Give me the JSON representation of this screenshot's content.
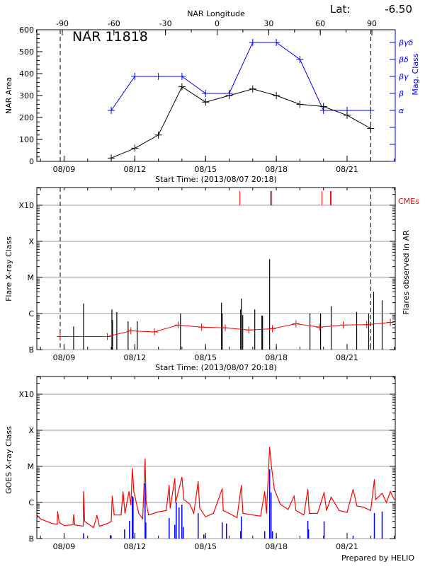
{
  "colors": {
    "area": "#000000",
    "mag": "#0000ff",
    "flare_avg": "#ff0000",
    "cme": "#ff0000",
    "goes": "#ff0000",
    "goes_flares": "#0000ff",
    "grid": "#999999"
  },
  "header": {
    "lat_label": "Lat:",
    "lat_value": "-6.50",
    "top_axis_label": "NAR Longitude"
  },
  "footer": {
    "credit": "Prepared by HELIO"
  },
  "chart_data": [
    {
      "type": "line",
      "title": "NAR 11818",
      "xlabel": "Start Time: (2013/08/07 20:18)",
      "ylabel": "NAR Area",
      "y2label": "Mag. Class",
      "x2label": "NAR Longitude",
      "xlim": [
        "2013-08-07T20:18",
        "2013-08-23T01:00"
      ],
      "ylim": [
        0,
        600
      ],
      "yticks": [
        0,
        100,
        200,
        300,
        400,
        500,
        600
      ],
      "xticks": [
        {
          "t": "2013-08-09T00:00",
          "label": "08/09"
        },
        {
          "t": "2013-08-12T00:00",
          "label": "08/12"
        },
        {
          "t": "2013-08-15T00:00",
          "label": "08/15"
        },
        {
          "t": "2013-08-18T00:00",
          "label": "08/18"
        },
        {
          "t": "2013-08-21T00:00",
          "label": "08/21"
        }
      ],
      "x2ticks": [
        -90,
        -60,
        -30,
        0,
        30,
        60,
        90
      ],
      "y2ticks": [
        {
          "v": 3,
          "label": "α"
        },
        {
          "v": 4,
          "label": "β"
        },
        {
          "v": 5,
          "label": "βγ"
        },
        {
          "v": 6,
          "label": "βδ"
        },
        {
          "v": 7,
          "label": "βγδ"
        }
      ],
      "dashed_lines": [
        "2013-08-08T20:04",
        "2013-08-22T00:09"
      ],
      "series": [
        {
          "key": "area",
          "x": [
            "2013-08-11T00:00",
            "2013-08-12T00:00",
            "2013-08-13T00:00",
            "2013-08-14T00:00",
            "2013-08-15T00:00",
            "2013-08-16T00:00",
            "2013-08-17T00:00",
            "2013-08-18T00:00",
            "2013-08-19T00:00",
            "2013-08-20T00:00",
            "2013-08-21T00:00",
            "2013-08-22T00:00"
          ],
          "values": [
            15,
            60,
            120,
            340,
            270,
            300,
            330,
            300,
            260,
            250,
            210,
            150
          ]
        },
        {
          "key": "mag",
          "x": [
            "2013-08-11T00:00",
            "2013-08-12T00:00",
            "2013-08-13T00:00",
            "2013-08-14T00:00",
            "2013-08-15T00:00",
            "2013-08-16T00:00",
            "2013-08-17T00:00",
            "2013-08-18T00:00",
            "2013-08-19T00:00",
            "2013-08-20T00:00",
            "2013-08-21T00:00",
            "2013-08-22T00:00"
          ],
          "values": [
            "α",
            "βγ",
            "βγ",
            "βγ",
            "β",
            "β",
            "βγδ",
            "βγδ",
            "βδ",
            "α",
            "α",
            "α"
          ]
        }
      ]
    },
    {
      "type": "bar",
      "xlabel": "Start Time: (2013/08/07 20:18)",
      "ylabel": "Flare X-ray Class",
      "y2label": "Flares observed in AR",
      "cme_label": "CMEs",
      "scale": "log",
      "ylim": [
        1e-07,
        0.003
      ],
      "yticks": [
        {
          "v": 1e-07,
          "label": "B"
        },
        {
          "v": 1e-06,
          "label": "C"
        },
        {
          "v": 1e-05,
          "label": "M"
        },
        {
          "v": 0.0001,
          "label": "X"
        },
        {
          "v": 0.001,
          "label": "X10"
        }
      ],
      "grid": true,
      "dashed_lines": [
        "2013-08-08T20:04",
        "2013-08-22T00:09"
      ],
      "flares": [
        [
          "2013-08-09T09:45",
          4.4e-07
        ],
        [
          "2013-08-09T19:50",
          1.9e-06
        ],
        [
          "2013-08-11T00:40",
          1.3e-06
        ],
        [
          "2013-08-11T01:20",
          6.6e-07
        ],
        [
          "2013-08-11T05:40",
          1.1e-06
        ],
        [
          "2013-08-11T17:10",
          6.1e-07
        ],
        [
          "2013-08-12T02:30",
          6.1e-07
        ],
        [
          "2013-08-13T22:28",
          1e-06
        ],
        [
          "2013-08-15T16:13",
          2e-06
        ],
        [
          "2013-08-15T16:56",
          1e-06
        ],
        [
          "2013-08-16T11:40",
          1.3e-06
        ],
        [
          "2013-08-16T12:23",
          2.6e-06
        ],
        [
          "2013-08-16T13:49",
          9.1e-07
        ],
        [
          "2013-08-17T02:04",
          1.3e-06
        ],
        [
          "2013-08-17T09:16",
          8.7e-07
        ],
        [
          "2013-08-17T10:00",
          8.7e-07
        ],
        [
          "2013-08-17T17:11",
          3.2e-05
        ],
        [
          "2013-08-19T10:13",
          1e-06
        ],
        [
          "2013-08-19T21:01",
          1e-06
        ],
        [
          "2013-08-20T07:49",
          1.6e-06
        ],
        [
          "2013-08-21T09:45",
          1.1e-06
        ],
        [
          "2013-08-21T21:59",
          1e-06
        ],
        [
          "2013-08-22T03:01",
          4e-06
        ],
        [
          "2013-08-22T11:40",
          2.3e-06
        ]
      ],
      "cmes": [
        "2013-08-16T10:57",
        "2013-08-17T17:54",
        "2013-08-17T19:20",
        "2013-08-19T22:28",
        "2013-08-20T07:06",
        "2013-08-20T07:49"
      ],
      "daily_average": {
        "x": [
          "2013-08-08T20:00",
          "2013-08-10T20:00",
          "2013-08-11T20:00",
          "2013-08-12T20:00",
          "2013-08-13T20:00",
          "2013-08-14T20:00",
          "2013-08-15T20:00",
          "2013-08-16T20:00",
          "2013-08-17T20:00",
          "2013-08-18T20:00",
          "2013-08-19T20:00",
          "2013-08-20T20:00",
          "2013-08-21T20:00",
          "2013-08-22T20:00"
        ],
        "values": [
          2.3e-07,
          2.3e-07,
          3.3e-07,
          3.1e-07,
          4.8e-07,
          4.2e-07,
          4e-07,
          3.5e-07,
          3.8e-07,
          5.2e-07,
          4.2e-07,
          4.8e-07,
          4.9e-07,
          5.7e-07
        ]
      }
    },
    {
      "type": "line",
      "ylabel": "GOES X-ray Class",
      "scale": "log",
      "ylim": [
        1e-07,
        0.003
      ],
      "yticks": [
        {
          "v": 1e-07,
          "label": "B"
        },
        {
          "v": 1e-06,
          "label": "C"
        },
        {
          "v": 1e-05,
          "label": "M"
        },
        {
          "v": 0.0001,
          "label": "X"
        },
        {
          "v": 0.001,
          "label": "X10"
        }
      ],
      "grid": true,
      "goes_flux": [
        [
          "2013-08-07T20:18",
          4.6e-07
        ],
        [
          "2013-08-08T00:00",
          3.5e-07
        ],
        [
          "2013-08-08T12:00",
          2.6e-07
        ],
        [
          "2013-08-08T17:00",
          2.5e-07
        ],
        [
          "2013-08-08T17:30",
          5.6e-07
        ],
        [
          "2013-08-08T19:00",
          2.8e-07
        ],
        [
          "2013-08-09T00:00",
          2.3e-07
        ],
        [
          "2013-08-09T09:00",
          2.4e-07
        ],
        [
          "2013-08-09T09:45",
          4.6e-07
        ],
        [
          "2013-08-09T11:00",
          2.4e-07
        ],
        [
          "2013-08-09T19:30",
          2.2e-07
        ],
        [
          "2013-08-09T19:50",
          2e-06
        ],
        [
          "2013-08-09T21:00",
          3e-07
        ],
        [
          "2013-08-10T06:00",
          2e-07
        ],
        [
          "2013-08-10T09:30",
          4.4e-07
        ],
        [
          "2013-08-10T12:00",
          2.2e-07
        ],
        [
          "2013-08-10T20:00",
          2.6e-07
        ],
        [
          "2013-08-11T00:00",
          3e-07
        ],
        [
          "2013-08-11T01:00",
          1.5e-06
        ],
        [
          "2013-08-11T03:00",
          4.5e-07
        ],
        [
          "2013-08-11T10:00",
          4.5e-07
        ],
        [
          "2013-08-11T12:00",
          2e-06
        ],
        [
          "2013-08-11T14:00",
          5e-07
        ],
        [
          "2013-08-11T18:00",
          2e-06
        ],
        [
          "2013-08-11T20:00",
          8.7e-07
        ],
        [
          "2013-08-11T21:30",
          8.7e-06
        ],
        [
          "2013-08-11T23:00",
          2e-06
        ],
        [
          "2013-08-12T04:00",
          5e-07
        ],
        [
          "2013-08-12T08:00",
          3.5e-07
        ],
        [
          "2013-08-12T10:28",
          1.6e-05
        ],
        [
          "2013-08-12T11:30",
          1e-06
        ],
        [
          "2013-08-12T14:00",
          4.5e-07
        ],
        [
          "2013-08-13T00:00",
          5.5e-07
        ],
        [
          "2013-08-13T08:00",
          6e-07
        ],
        [
          "2013-08-13T10:57",
          3e-06
        ],
        [
          "2013-08-13T12:00",
          7e-07
        ],
        [
          "2013-08-13T16:42",
          4.6e-06
        ],
        [
          "2013-08-13T17:30",
          1e-06
        ],
        [
          "2013-08-13T23:54",
          5e-06
        ],
        [
          "2013-08-14T02:00",
          1.2e-06
        ],
        [
          "2013-08-14T08:00",
          9e-07
        ],
        [
          "2013-08-14T12:00",
          5e-07
        ],
        [
          "2013-08-14T16:28",
          3.8e-06
        ],
        [
          "2013-08-14T18:00",
          7e-07
        ],
        [
          "2013-08-15T00:00",
          4e-07
        ],
        [
          "2013-08-15T08:00",
          5e-07
        ],
        [
          "2013-08-15T16:56",
          2.4e-06
        ],
        [
          "2013-08-15T18:00",
          6e-07
        ],
        [
          "2013-08-16T00:00",
          5e-07
        ],
        [
          "2013-08-16T08:00",
          3.8e-07
        ],
        [
          "2013-08-16T12:23",
          3e-06
        ],
        [
          "2013-08-16T14:00",
          5e-07
        ],
        [
          "2013-08-17T00:00",
          4.5e-07
        ],
        [
          "2013-08-17T08:00",
          4.2e-07
        ],
        [
          "2013-08-17T12:09",
          2e-06
        ],
        [
          "2013-08-17T14:00",
          5e-07
        ],
        [
          "2013-08-17T17:11",
          3.4e-05
        ],
        [
          "2013-08-17T19:00",
          1e-05
        ],
        [
          "2013-08-17T22:00",
          2.3e-06
        ],
        [
          "2013-08-18T04:00",
          9e-07
        ],
        [
          "2013-08-18T12:00",
          6.4e-07
        ],
        [
          "2013-08-18T18:00",
          1.5e-06
        ],
        [
          "2013-08-18T20:00",
          6e-07
        ],
        [
          "2013-08-19T04:00",
          4.5e-07
        ],
        [
          "2013-08-19T08:04",
          2.3e-06
        ],
        [
          "2013-08-19T09:30",
          5e-07
        ],
        [
          "2013-08-19T18:00",
          5e-07
        ],
        [
          "2013-08-20T00:37",
          1.9e-06
        ],
        [
          "2013-08-20T03:00",
          6e-07
        ],
        [
          "2013-08-20T07:49",
          1.4e-06
        ],
        [
          "2013-08-20T16:00",
          6e-07
        ],
        [
          "2013-08-21T00:00",
          5.3e-07
        ],
        [
          "2013-08-21T06:09",
          2.3e-06
        ],
        [
          "2013-08-21T10:00",
          8e-07
        ],
        [
          "2013-08-21T16:00",
          7.5e-07
        ],
        [
          "2013-08-22T00:00",
          6e-07
        ],
        [
          "2013-08-22T03:45",
          4.3e-06
        ],
        [
          "2013-08-22T05:00",
          1.2e-06
        ],
        [
          "2013-08-22T11:40",
          1.8e-06
        ],
        [
          "2013-08-22T16:00",
          1e-06
        ],
        [
          "2013-08-22T20:00",
          2e-06
        ],
        [
          "2013-08-23T00:00",
          1.2e-06
        ]
      ],
      "goes_flares": [
        [
          "2013-08-09T19:49",
          1.4e-07
        ],
        [
          "2013-08-10T23:11",
          1.25e-07
        ],
        [
          "2013-08-11T13:35",
          1.8e-07
        ],
        [
          "2013-08-11T18:37",
          3.1e-07
        ],
        [
          "2013-08-11T21:30",
          1.5e-06
        ],
        [
          "2013-08-11T22:13",
          1.4e-06
        ],
        [
          "2013-08-12T10:28",
          3.4e-06
        ],
        [
          "2013-08-12T11:11",
          2.8e-07
        ],
        [
          "2013-08-13T10:57",
          3.7e-07
        ],
        [
          "2013-08-13T16:42",
          2.4e-07
        ],
        [
          "2013-08-13T18:09",
          1e-06
        ],
        [
          "2013-08-13T21:01",
          7.3e-07
        ],
        [
          "2013-08-13T23:54",
          8.7e-07
        ],
        [
          "2013-08-14T01:20",
          2.1e-07
        ],
        [
          "2013-08-14T16:28",
          5.1e-07
        ],
        [
          "2013-08-14T22:13",
          1.3e-07
        ],
        [
          "2013-08-15T16:56",
          2.8e-07
        ],
        [
          "2013-08-15T21:15",
          2.6e-07
        ],
        [
          "2013-08-16T11:40",
          1.6e-07
        ],
        [
          "2013-08-16T12:23",
          4.1e-07
        ],
        [
          "2013-08-17T12:09",
          1.6e-07
        ],
        [
          "2013-08-17T17:11",
          8.3e-06
        ],
        [
          "2013-08-17T18:37",
          1.9e-06
        ],
        [
          "2013-08-17T20:04",
          1.6e-07
        ],
        [
          "2013-08-19T08:04",
          3.1e-07
        ],
        [
          "2013-08-19T08:47",
          1.8e-07
        ],
        [
          "2013-08-20T00:37",
          3e-07
        ],
        [
          "2013-08-21T06:09",
          1.2e-07
        ],
        [
          "2013-08-22T03:45",
          5.1e-07
        ],
        [
          "2013-08-22T11:40",
          5.6e-07
        ]
      ]
    }
  ]
}
